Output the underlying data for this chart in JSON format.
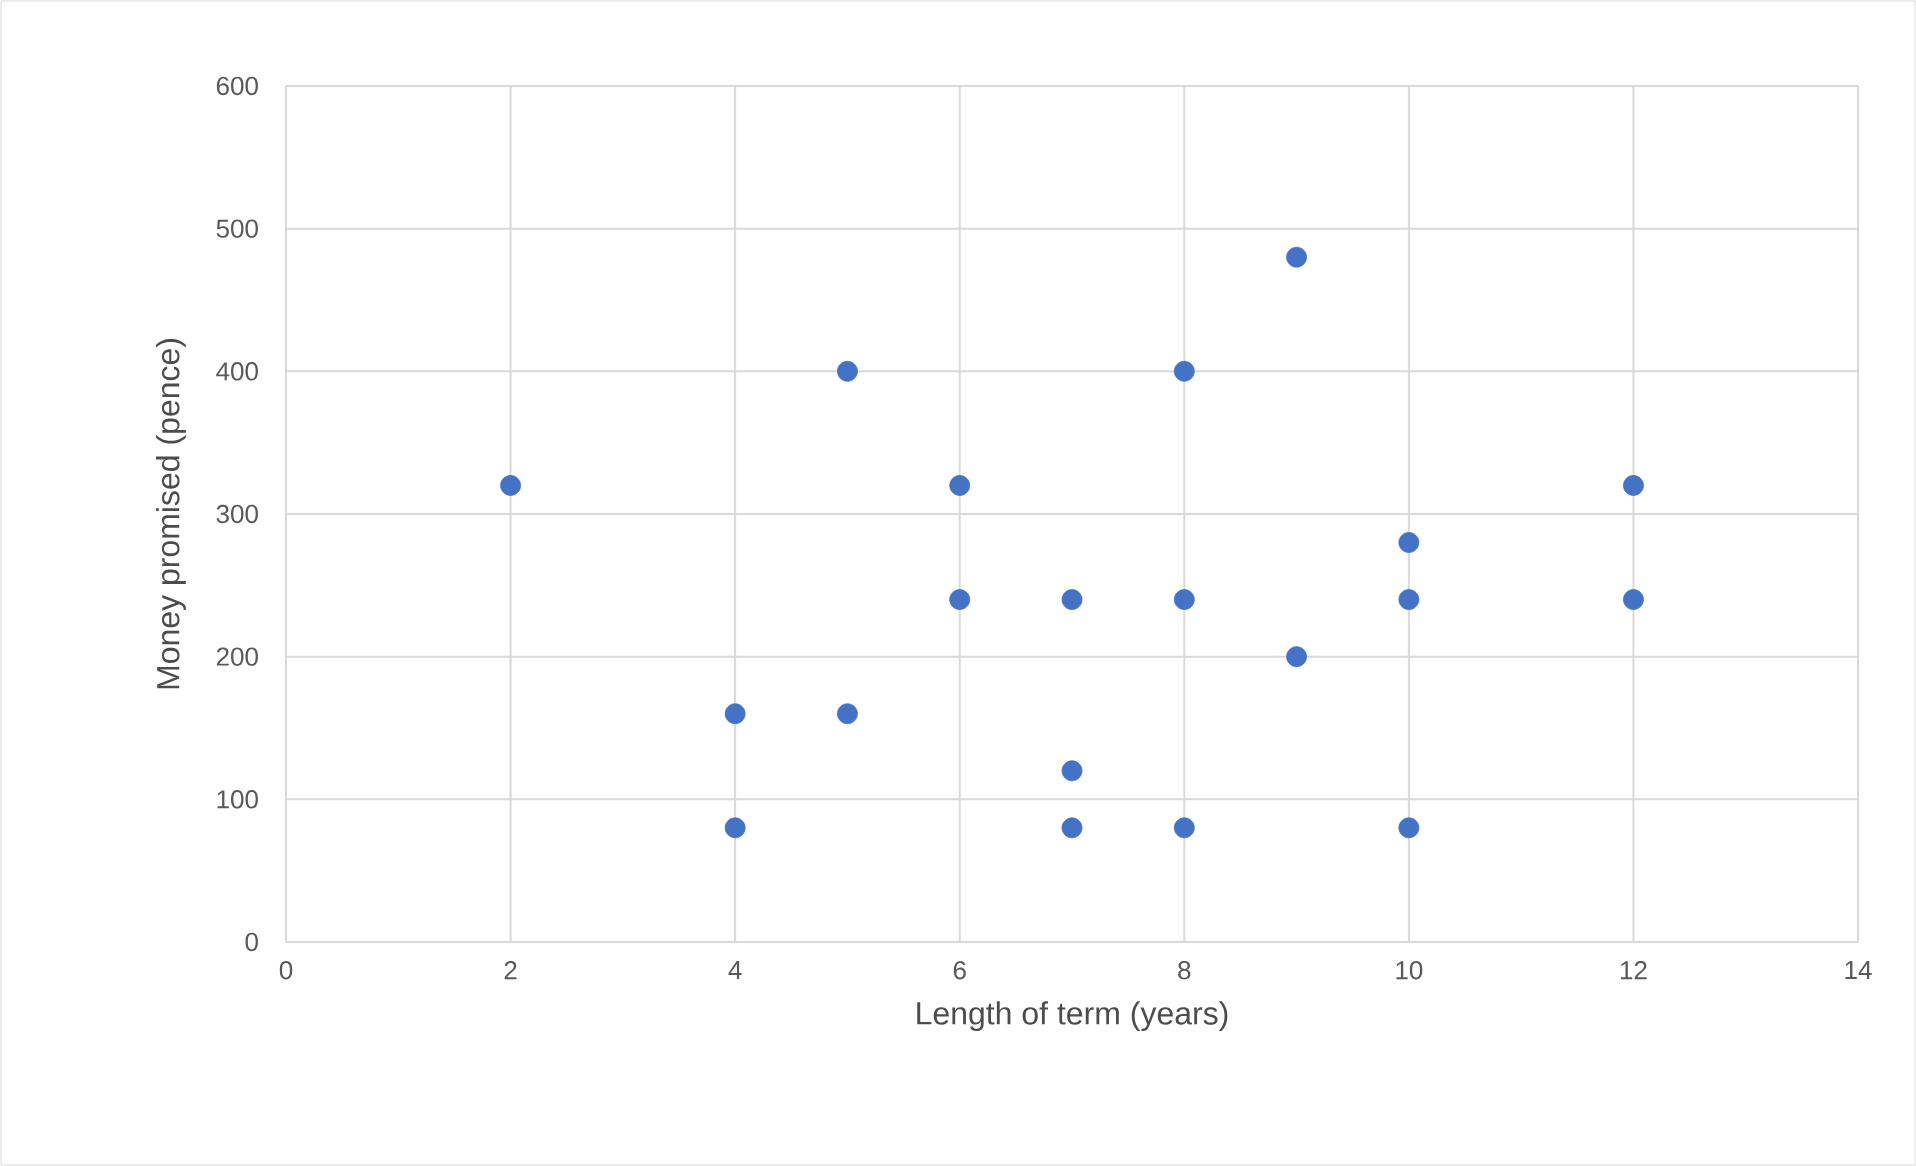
{
  "chart_data": {
    "type": "scatter",
    "xlabel": "Length of term (years)",
    "ylabel": "Money promised (pence)",
    "series": [
      {
        "color": "#4472c4",
        "x": [
          2,
          4,
          4,
          5,
          5,
          6,
          6,
          7,
          7,
          7,
          8,
          8,
          8,
          9,
          9,
          10,
          10,
          10,
          12,
          12
        ],
        "values": [
          320,
          160,
          80,
          400,
          160,
          320,
          240,
          240,
          120,
          80,
          400,
          240,
          80,
          480,
          200,
          280,
          240,
          80,
          320,
          240
        ]
      }
    ],
    "xlim": [
      0,
      14
    ],
    "xticks": [
      0,
      2,
      4,
      6,
      8,
      10,
      12,
      14
    ],
    "ylim": [
      0,
      600
    ],
    "yticks": [
      0,
      100,
      200,
      300,
      400,
      500,
      600
    ],
    "grid": true
  }
}
